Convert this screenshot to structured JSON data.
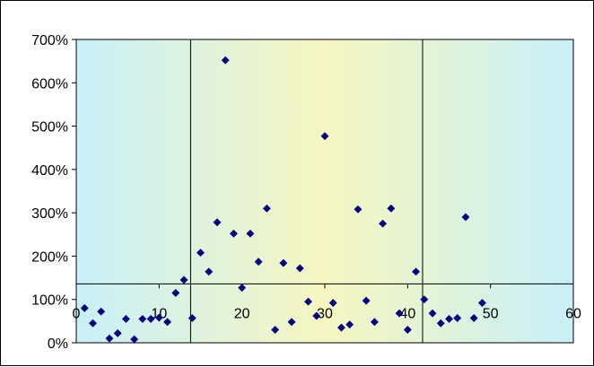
{
  "chart_data": {
    "type": "scatter",
    "title": "",
    "xlabel": "",
    "ylabel": "",
    "xlim": [
      0,
      60
    ],
    "ylim": [
      0,
      7
    ],
    "x_ticks": [
      0,
      10,
      20,
      30,
      40,
      50,
      60
    ],
    "x_tick_labels": [
      "0",
      "10",
      "20",
      "30",
      "40",
      "50",
      "60"
    ],
    "y_ticks": [
      0,
      1,
      2,
      3,
      4,
      5,
      6,
      7
    ],
    "y_tick_labels": [
      "0%",
      "100%",
      "200%",
      "300%",
      "400%",
      "500%",
      "600%",
      "700%"
    ],
    "x_axis_crosses_at": 1.36,
    "reference_lines": {
      "vertical_x": [
        13.8,
        41.8
      ],
      "horizontal_y": 1.36
    },
    "grid": false,
    "legend": "none",
    "series": [
      {
        "marker": "diamond",
        "color": "#000080",
        "points": [
          [
            1,
            0.8
          ],
          [
            2,
            0.45
          ],
          [
            3,
            0.72
          ],
          [
            4,
            0.1
          ],
          [
            5,
            0.22
          ],
          [
            6,
            0.55
          ],
          [
            7,
            0.08
          ],
          [
            8,
            0.55
          ],
          [
            9,
            0.55
          ],
          [
            10,
            0.58
          ],
          [
            11,
            0.48
          ],
          [
            12,
            1.15
          ],
          [
            13,
            1.45
          ],
          [
            14,
            0.57
          ],
          [
            15,
            2.08
          ],
          [
            16,
            1.64
          ],
          [
            17,
            2.78
          ],
          [
            18,
            6.52
          ],
          [
            19,
            2.52
          ],
          [
            20,
            1.27
          ],
          [
            21,
            2.52
          ],
          [
            22,
            1.87
          ],
          [
            23,
            3.1
          ],
          [
            24,
            0.3
          ],
          [
            25,
            1.84
          ],
          [
            26,
            0.48
          ],
          [
            27,
            1.72
          ],
          [
            28,
            0.95
          ],
          [
            29,
            0.62
          ],
          [
            30,
            4.77
          ],
          [
            31,
            0.92
          ],
          [
            32,
            0.35
          ],
          [
            33,
            0.42
          ],
          [
            34,
            3.08
          ],
          [
            35,
            0.97
          ],
          [
            36,
            0.48
          ],
          [
            37,
            2.75
          ],
          [
            38,
            3.1
          ],
          [
            39,
            0.68
          ],
          [
            40,
            0.3
          ],
          [
            41,
            1.64
          ],
          [
            42,
            1.0
          ],
          [
            43,
            0.68
          ],
          [
            44,
            0.45
          ],
          [
            45,
            0.55
          ],
          [
            46,
            0.57
          ],
          [
            47,
            2.9
          ],
          [
            48,
            0.57
          ],
          [
            49,
            0.92
          ]
        ]
      }
    ],
    "background_gradient": [
      "#c8f0f8",
      "#f6f6c0",
      "#c8f0f8"
    ]
  }
}
